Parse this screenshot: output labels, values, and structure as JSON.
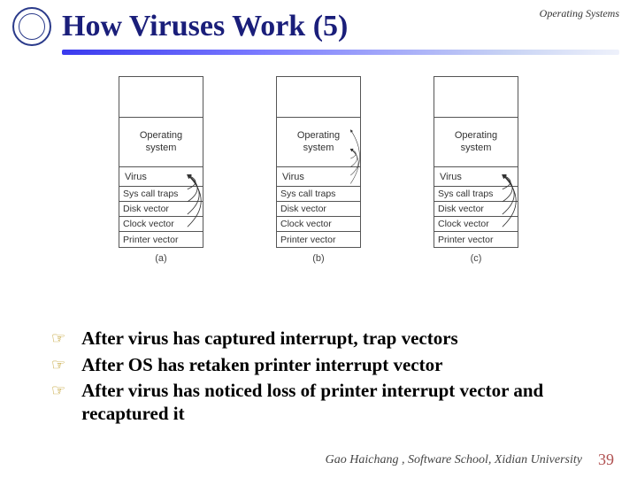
{
  "header": {
    "title": "How Viruses Work (5)",
    "subtitle": "Operating Systems"
  },
  "diagram": {
    "columns": [
      {
        "os": "Operating\nsystem",
        "virus": "Virus",
        "vectors": [
          "Sys call traps",
          "Disk vector",
          "Clock vector",
          "Printer vector"
        ],
        "caption": "(a)",
        "arrows_to_virus": [
          0,
          1,
          2,
          3
        ],
        "arrows_to_os": []
      },
      {
        "os": "Operating\nsystem",
        "virus": "Virus",
        "vectors": [
          "Sys call traps",
          "Disk vector",
          "Clock vector",
          "Printer vector"
        ],
        "caption": "(b)",
        "arrows_to_virus": [
          0,
          1,
          2
        ],
        "arrows_to_os": [
          3
        ]
      },
      {
        "os": "Operating\nsystem",
        "virus": "Virus",
        "vectors": [
          "Sys call traps",
          "Disk vector",
          "Clock vector",
          "Printer vector"
        ],
        "caption": "(c)",
        "arrows_to_virus": [
          0,
          1,
          2,
          3
        ],
        "arrows_to_os": []
      }
    ],
    "stack_width": 96,
    "font_family": "Arial",
    "font_size": 11,
    "border_color": "#555555",
    "arrow_color": "#333333"
  },
  "bullets": [
    "After virus has captured interrupt, trap vectors",
    "After OS has retaken printer interrupt vector",
    "After virus has noticed loss of printer interrupt vector and recaptured it"
  ],
  "footer": {
    "text": "Gao Haichang , Software School, Xidian University",
    "page": "39"
  },
  "colors": {
    "title_color": "#1a1e7a",
    "divider_start": "#3a3aee",
    "divider_end": "#eef1fb",
    "bullet_marker": "#b38a00",
    "page_color": "#b05050",
    "background": "#ffffff"
  }
}
